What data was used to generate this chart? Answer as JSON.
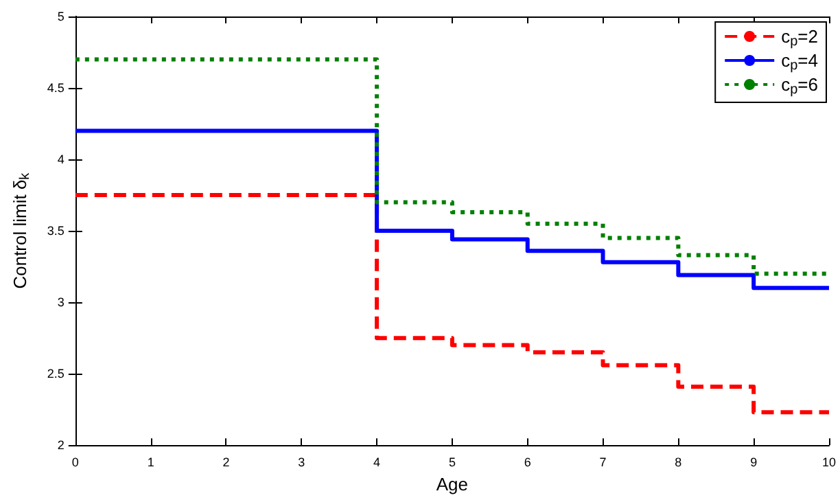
{
  "chart_data": {
    "type": "step",
    "xlabel": "Age",
    "ylabel": "Control limit δ$_{k}$",
    "x": [
      0,
      4,
      5,
      6,
      7,
      8,
      9,
      10
    ],
    "series": [
      {
        "name": "c$_{p}$=2",
        "color": "#ff0000",
        "line_style": "dashed",
        "values": [
          3.75,
          2.75,
          2.7,
          2.65,
          2.56,
          2.41,
          2.23,
          2.23
        ]
      },
      {
        "name": "c$_{p}$=4",
        "color": "#0000ff",
        "line_style": "solid",
        "values": [
          4.2,
          3.5,
          3.44,
          3.36,
          3.28,
          3.19,
          3.1,
          3.1
        ]
      },
      {
        "name": "c$_{p}$=6",
        "color": "#008000",
        "line_style": "dotted",
        "values": [
          4.7,
          3.7,
          3.63,
          3.55,
          3.45,
          3.33,
          3.2,
          3.2
        ]
      }
    ],
    "xlim": [
      0,
      10
    ],
    "xticks": [
      0,
      1,
      2,
      3,
      4,
      5,
      6,
      7,
      8,
      9,
      10
    ],
    "ylim": [
      2,
      5
    ],
    "yticks": [
      2,
      2.5,
      3,
      3.5,
      4,
      4.5,
      5
    ],
    "grid": false,
    "legend": "top right",
    "marker": "none"
  }
}
